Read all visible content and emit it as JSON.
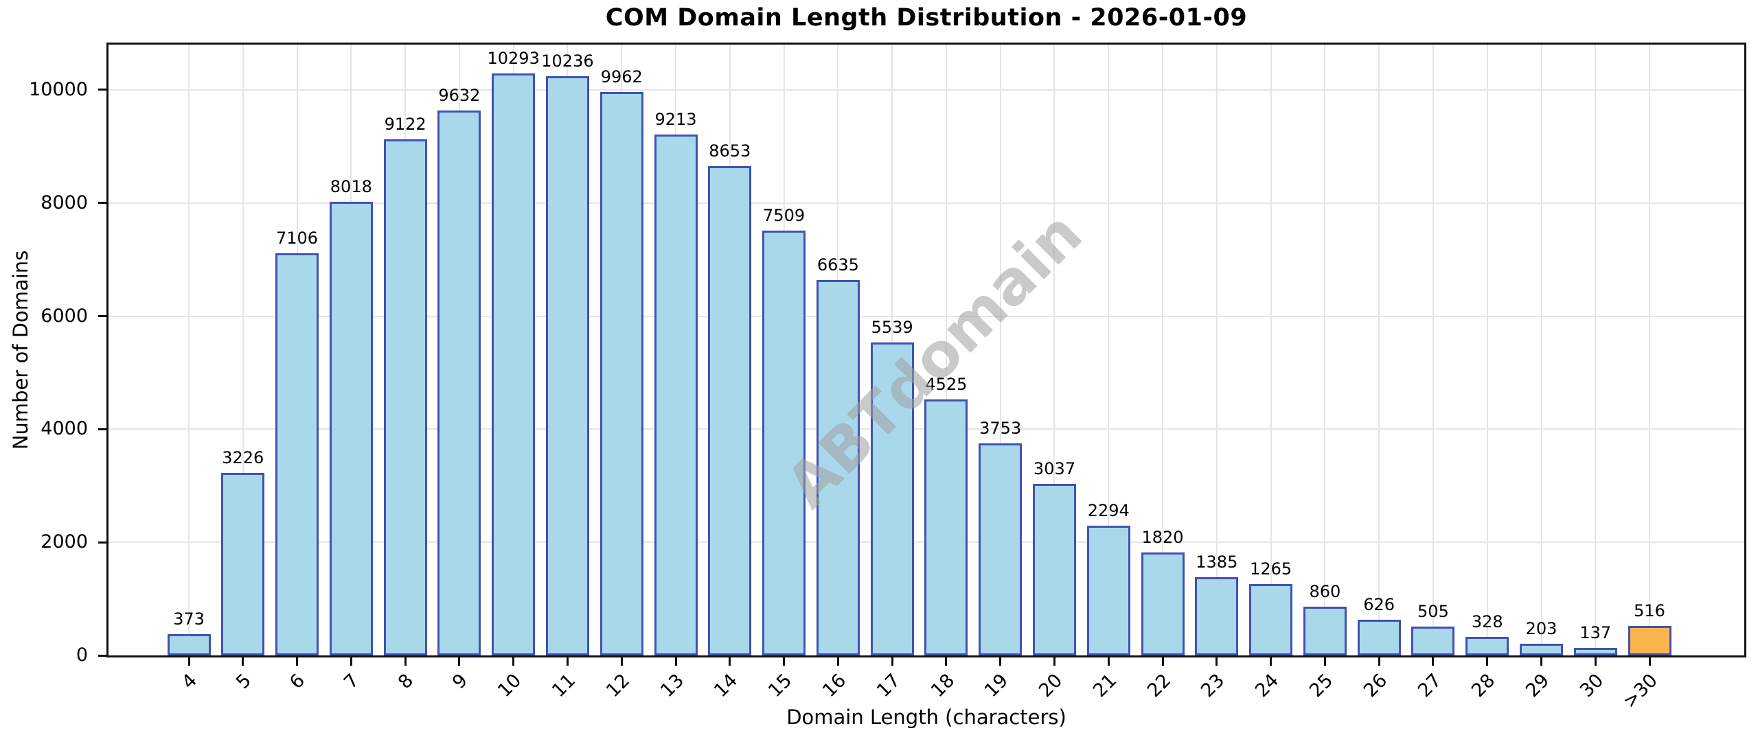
{
  "chart_data": {
    "type": "bar",
    "title": "COM Domain Length Distribution - 2026-01-09",
    "xlabel": "Domain Length (characters)",
    "ylabel": "Number of Domains",
    "categories": [
      "4",
      "5",
      "6",
      "7",
      "8",
      "9",
      "10",
      "11",
      "12",
      "13",
      "14",
      "15",
      "16",
      "17",
      "18",
      "19",
      "20",
      "21",
      "22",
      "23",
      "24",
      "25",
      "26",
      "27",
      "28",
      "29",
      "30",
      ">30"
    ],
    "values": [
      373,
      3226,
      7106,
      8018,
      9122,
      9632,
      10293,
      10236,
      9962,
      9213,
      8653,
      7509,
      6635,
      5539,
      4525,
      3753,
      3037,
      2294,
      1820,
      1385,
      1265,
      860,
      626,
      505,
      328,
      203,
      137,
      516
    ],
    "value_labels_shown": true,
    "yticks": [
      0,
      2000,
      4000,
      6000,
      8000,
      10000
    ],
    "ylim": [
      0,
      10800
    ],
    "grid": true,
    "legend_position": "none",
    "watermark": "ABTdomain",
    "colors": {
      "bar_fill": "#A9D8EA",
      "bar_edge": "#4152B3",
      "highlight_fill": "#FBB44E",
      "grid": "#E5E5E5",
      "axis": "#111111",
      "text": "#000000",
      "watermark": "#A0A0A0",
      "background": "#FFFFFF"
    },
    "highlight_index": 27
  }
}
